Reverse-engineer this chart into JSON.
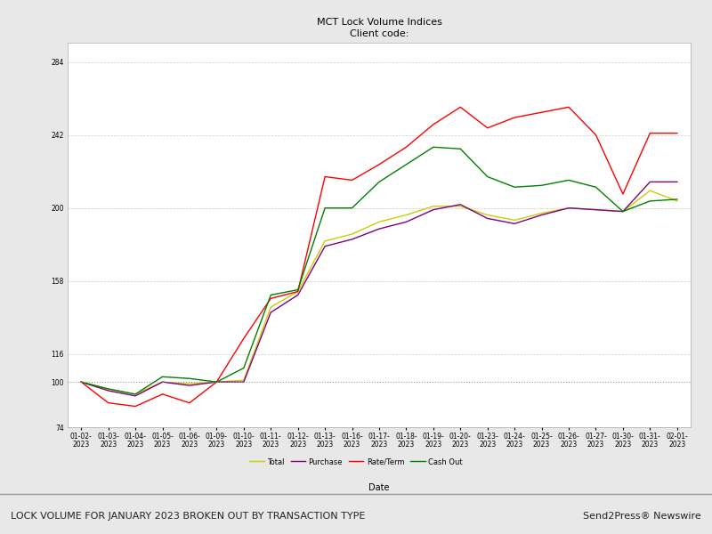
{
  "title": "MCT Lock Volume Indices",
  "subtitle": "Client code:",
  "xlabel": "Date",
  "background_color": "#e8e8e8",
  "plot_bg_color": "#ffffff",
  "x_labels": [
    "01-02-\n2023",
    "01-03-\n2023",
    "01-04-\n2023",
    "01-05-\n2023",
    "01-06-\n2023",
    "01-09-\n2023",
    "01-10-\n2023",
    "01-11-\n2023",
    "01-12-\n2023",
    "01-13-\n2023",
    "01-16-\n2023",
    "01-17-\n2023",
    "01-18-\n2023",
    "01-19-\n2023",
    "01-20-\n2023",
    "01-23-\n2023",
    "01-24-\n2023",
    "01-25-\n2023",
    "01-26-\n2023",
    "01-27-\n2023",
    "01-30-\n2023",
    "01-31-\n2023",
    "02-01-\n2023"
  ],
  "yticks": [
    74,
    100,
    116,
    158,
    200,
    242,
    284
  ],
  "ylim": [
    74,
    295
  ],
  "series": {
    "Total": {
      "color": "#cccc00",
      "values": [
        100,
        96,
        93,
        100,
        99,
        100,
        101,
        143,
        152,
        181,
        185,
        192,
        196,
        201,
        201,
        196,
        193,
        197,
        200,
        199,
        198,
        210,
        204
      ]
    },
    "Purchase": {
      "color": "#800080",
      "values": [
        100,
        95,
        92,
        100,
        98,
        100,
        100,
        140,
        150,
        178,
        182,
        188,
        192,
        199,
        202,
        194,
        191,
        196,
        200,
        199,
        198,
        215,
        215
      ]
    },
    "Rate/Term": {
      "color": "#ff0000",
      "values": [
        100,
        88,
        86,
        93,
        88,
        100,
        125,
        148,
        152,
        218,
        216,
        225,
        235,
        248,
        258,
        246,
        252,
        255,
        258,
        242,
        208,
        243,
        243
      ]
    },
    "Cash Out": {
      "color": "#008000",
      "values": [
        100,
        96,
        93,
        103,
        102,
        100,
        108,
        150,
        153,
        200,
        200,
        215,
        225,
        235,
        234,
        218,
        212,
        213,
        216,
        212,
        198,
        204,
        205
      ]
    }
  },
  "legend_order": [
    "Total",
    "Purchase",
    "Rate/Term",
    "Cash Out"
  ],
  "ref_line_y": 100,
  "grid_color": "#cccccc",
  "footer_text": "LOCK VOLUME FOR JANUARY 2023 BROKEN OUT BY TRANSACTION TYPE",
  "footer_right": "Send2Press® Newswire",
  "footer_bg": "#d8d8d8",
  "title_fontsize": 8,
  "tick_fontsize": 5.5,
  "xlabel_fontsize": 7,
  "legend_fontsize": 6,
  "footer_fontsize": 8
}
